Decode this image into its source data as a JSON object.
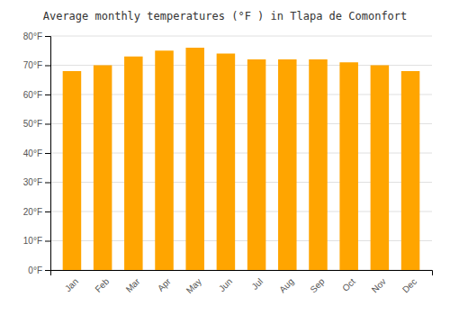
{
  "chart_data": {
    "type": "bar",
    "title": "Average monthly temperatures (°F ) in Tlapa de Comonfort",
    "categories": [
      "Jan",
      "Feb",
      "Mar",
      "Apr",
      "May",
      "Jun",
      "Jul",
      "Aug",
      "Sep",
      "Oct",
      "Nov",
      "Dec"
    ],
    "values": [
      68,
      70,
      73,
      75,
      76,
      74,
      72,
      72,
      72,
      71,
      70,
      68
    ],
    "color": "#FFA500",
    "ylim": [
      0,
      80
    ],
    "yticks": [
      {
        "value": 0,
        "label": "0°F"
      },
      {
        "value": 10,
        "label": "10°F"
      },
      {
        "value": 20,
        "label": "20°F"
      },
      {
        "value": 30,
        "label": "30°F"
      },
      {
        "value": 40,
        "label": "40°F"
      },
      {
        "value": 50,
        "label": "50°F"
      },
      {
        "value": 60,
        "label": "60°F"
      },
      {
        "value": 70,
        "label": "70°F"
      },
      {
        "value": 80,
        "label": "80°F"
      }
    ],
    "grid": true
  }
}
